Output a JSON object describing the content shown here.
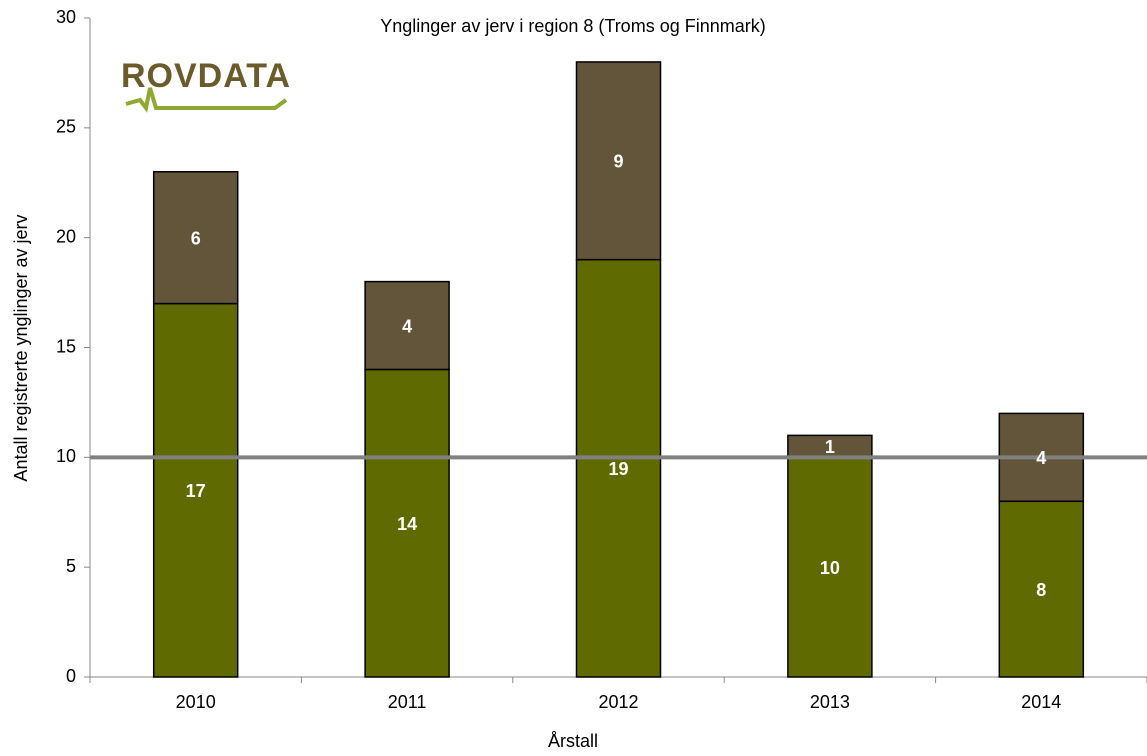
{
  "logo": "ROVDATA",
  "chart_data": {
    "type": "stacked_bar",
    "title": "Ynglinger av jerv i region 8 (Troms og Finnmark)",
    "x_label": "Årstall",
    "y_label": "Antall registrerte ynglinger av jerv",
    "categories": [
      "2010",
      "2011",
      "2012",
      "2013",
      "2014"
    ],
    "series": [
      {
        "color": "#5f6b00",
        "values": [
          17,
          14,
          19,
          10,
          8
        ]
      },
      {
        "color": "#63553a",
        "values": [
          6,
          4,
          9,
          1,
          4
        ]
      }
    ],
    "ylim": [
      0,
      30
    ],
    "yticks": [
      0,
      5,
      10,
      15,
      20,
      25,
      30
    ],
    "reference_line": {
      "value": 10,
      "color": "#808080"
    },
    "grid": false
  }
}
